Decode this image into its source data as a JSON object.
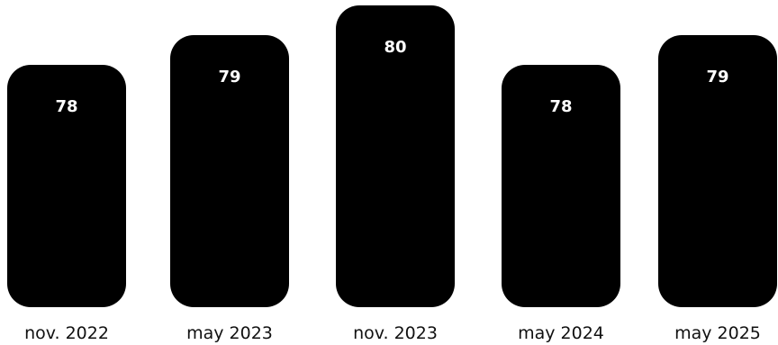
{
  "chart_data": {
    "type": "bar",
    "categories": [
      "nov. 2022",
      "may 2023",
      "nov. 2023",
      "may 2024",
      "may 2025"
    ],
    "values": [
      78,
      79,
      80,
      78,
      79
    ],
    "title": "",
    "xlabel": "",
    "ylabel": "",
    "grid": false,
    "legend": "none",
    "colors": {
      "bar": "#000000",
      "value_label": "#ffffff",
      "category_label": "#111111",
      "background": "#ffffff"
    }
  }
}
